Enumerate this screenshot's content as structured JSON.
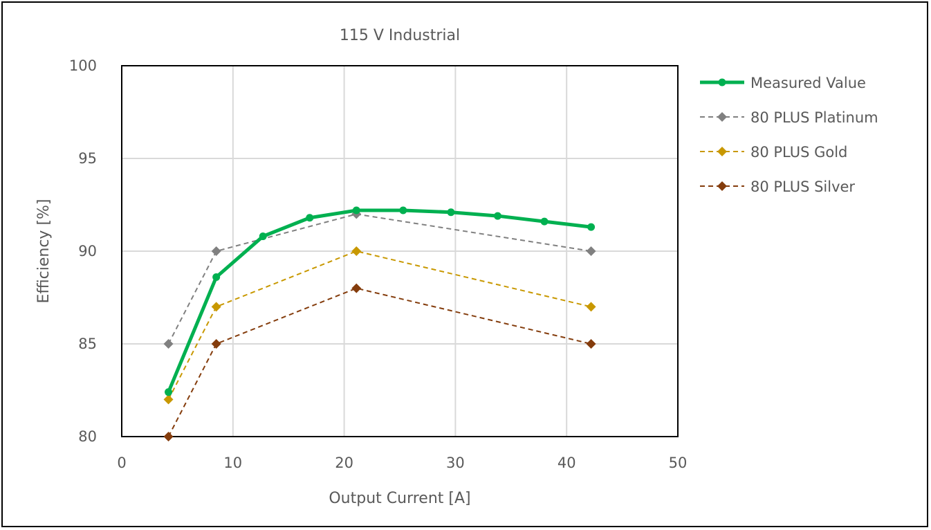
{
  "chart_data": {
    "type": "line",
    "title": "115 V Industrial",
    "xlabel": "Output Current  [A]",
    "ylabel": "Efficiency  [%]",
    "xlim": [
      0,
      50
    ],
    "ylim": [
      80,
      100
    ],
    "xticks": [
      0,
      10,
      20,
      30,
      40,
      50
    ],
    "yticks": [
      80,
      85,
      90,
      95,
      100
    ],
    "grid": true,
    "legend_position": "right",
    "series": [
      {
        "name": "Measured Value",
        "color": "#00b050",
        "style": "solid",
        "marker": "circle",
        "x": [
          4.2,
          8.5,
          12.7,
          16.9,
          21.1,
          25.3,
          29.6,
          33.8,
          38.0,
          42.2
        ],
        "y": [
          82.4,
          88.6,
          90.8,
          91.8,
          92.2,
          92.2,
          92.1,
          91.9,
          91.6,
          91.3
        ]
      },
      {
        "name": "80 PLUS Platinum",
        "color": "#808080",
        "style": "dashed",
        "marker": "diamond",
        "x": [
          4.2,
          8.5,
          21.1,
          42.2
        ],
        "y": [
          85,
          90,
          92,
          90
        ]
      },
      {
        "name": "80 PLUS Gold",
        "color": "#c89800",
        "style": "dashed",
        "marker": "diamond",
        "x": [
          4.2,
          8.5,
          21.1,
          42.2
        ],
        "y": [
          82,
          87,
          90,
          87
        ]
      },
      {
        "name": "80 PLUS Silver",
        "color": "#843c0c",
        "style": "dashed",
        "marker": "diamond",
        "x": [
          4.2,
          8.5,
          21.1,
          42.2
        ],
        "y": [
          80,
          85,
          88,
          85
        ]
      }
    ]
  }
}
